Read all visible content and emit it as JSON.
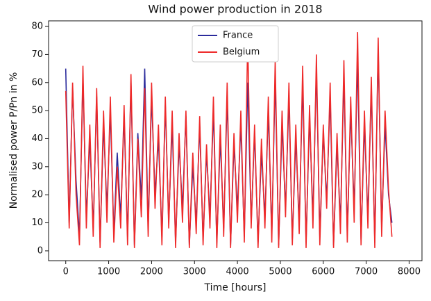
{
  "chart_data": {
    "type": "line",
    "title": "Wind power production in 2018",
    "x_label": "Time [hours]",
    "y_label": "Normalised power P/Pn in %",
    "x": [
      0,
      80,
      160,
      240,
      320,
      400,
      480,
      560,
      640,
      720,
      800,
      880,
      960,
      1040,
      1120,
      1200,
      1280,
      1360,
      1440,
      1520,
      1600,
      1680,
      1760,
      1840,
      1920,
      2000,
      2080,
      2160,
      2240,
      2320,
      2400,
      2480,
      2560,
      2640,
      2720,
      2800,
      2880,
      2960,
      3040,
      3120,
      3200,
      3280,
      3360,
      3440,
      3520,
      3600,
      3680,
      3760,
      3840,
      3920,
      4000,
      4080,
      4160,
      4240,
      4320,
      4400,
      4480,
      4560,
      4640,
      4720,
      4800,
      4880,
      4960,
      5040,
      5120,
      5200,
      5280,
      5360,
      5440,
      5520,
      5600,
      5680,
      5760,
      5840,
      5920,
      6000,
      6080,
      6160,
      6240,
      6320,
      6400,
      6480,
      6560,
      6640,
      6720,
      6800,
      6880,
      6960,
      7040,
      7120,
      7200,
      7280,
      7360,
      7440,
      7520,
      7600
    ],
    "series": [
      {
        "name": "France",
        "color": "#2b2b9c",
        "values": [
          65,
          10,
          58,
          25,
          5,
          62,
          12,
          40,
          8,
          55,
          3,
          45,
          15,
          50,
          6,
          35,
          12,
          48,
          5,
          60,
          2,
          42,
          18,
          65,
          8,
          55,
          20,
          40,
          5,
          52,
          10,
          45,
          3,
          38,
          15,
          48,
          2,
          30,
          10,
          45,
          4,
          35,
          12,
          50,
          3,
          40,
          8,
          55,
          2,
          38,
          15,
          45,
          5,
          60,
          10,
          42,
          3,
          35,
          12,
          50,
          6,
          62,
          2,
          45,
          15,
          55,
          4,
          40,
          10,
          60,
          3,
          48,
          12,
          65,
          5,
          42,
          18,
          55,
          2,
          38,
          10,
          62,
          6,
          50,
          15,
          68,
          4,
          45,
          12,
          58,
          3,
          72,
          8,
          45,
          20,
          10
        ]
      },
      {
        "name": "Belgium",
        "color": "#ee2a2a",
        "values": [
          57,
          8,
          60,
          20,
          2,
          66,
          8,
          45,
          5,
          58,
          1,
          50,
          10,
          55,
          3,
          30,
          8,
          52,
          2,
          63,
          1,
          40,
          12,
          58,
          5,
          60,
          15,
          45,
          2,
          55,
          8,
          50,
          1,
          42,
          10,
          50,
          1,
          35,
          6,
          48,
          2,
          38,
          8,
          55,
          1,
          45,
          5,
          60,
          1,
          42,
          10,
          50,
          3,
          76,
          8,
          45,
          1,
          40,
          8,
          55,
          3,
          68,
          1,
          50,
          12,
          60,
          2,
          45,
          6,
          66,
          1,
          52,
          8,
          70,
          2,
          45,
          15,
          60,
          1,
          42,
          6,
          68,
          3,
          55,
          10,
          78,
          2,
          50,
          8,
          62,
          1,
          76,
          5,
          50,
          22,
          5
        ]
      }
    ],
    "xlim": [
      -400,
      8300
    ],
    "ylim": [
      -3.5,
      82
    ],
    "xticks": [
      0,
      1000,
      2000,
      3000,
      4000,
      5000,
      6000,
      7000,
      8000
    ],
    "yticks": [
      0,
      10,
      20,
      30,
      40,
      50,
      60,
      70,
      80
    ],
    "legend": "upper center"
  }
}
